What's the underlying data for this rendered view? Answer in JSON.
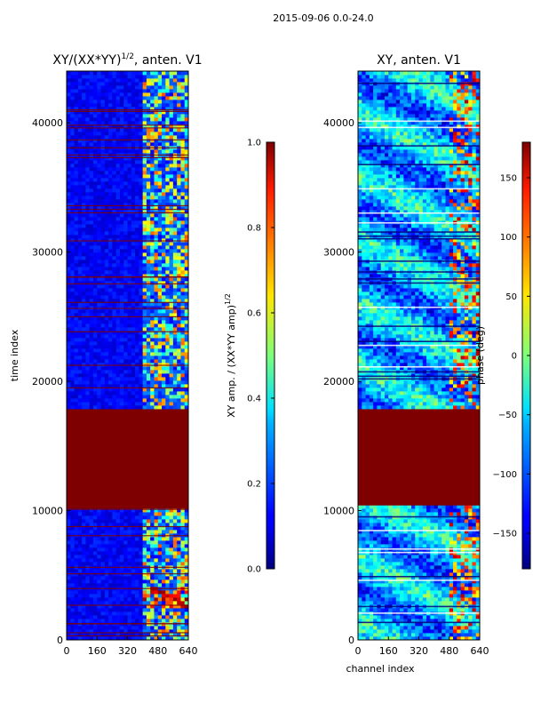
{
  "suptitle": "2015-09-06 0.0-24.0",
  "chart_data": [
    {
      "type": "heatmap",
      "title": "XY/(XX*YY)",
      "title_exponent": "1/2",
      "title_suffix": ", anten. V1",
      "xlabel": "",
      "ylabel": "time index",
      "xlim": [
        0,
        640
      ],
      "ylim": [
        0,
        44000
      ],
      "xticks": [
        0,
        160,
        320,
        480,
        640
      ],
      "yticks": [
        0,
        10000,
        20000,
        30000,
        40000
      ],
      "saturated_band": [
        10200,
        17800
      ],
      "colorbar": {
        "label": "XY amp. / (XX*YY amp)",
        "label_exponent": "1/2",
        "range": [
          0.0,
          1.0
        ],
        "ticks": [
          "0.0",
          "0.2",
          "0.4",
          "0.6",
          "0.8",
          "1.0"
        ]
      }
    },
    {
      "type": "heatmap",
      "title": "XY, anten. V1",
      "xlabel": "channel index",
      "ylabel": "",
      "xlim": [
        0,
        640
      ],
      "ylim": [
        0,
        44000
      ],
      "xticks": [
        0,
        160,
        320,
        480,
        640
      ],
      "yticks": [
        0,
        10000,
        20000,
        30000,
        40000
      ],
      "saturated_band": [
        10400,
        17800
      ],
      "colorbar": {
        "label": "phase (deg)",
        "range": [
          -180,
          180
        ],
        "ticks": [
          "−150",
          "−100",
          "−50",
          "0",
          "50",
          "100",
          "150"
        ]
      }
    }
  ]
}
